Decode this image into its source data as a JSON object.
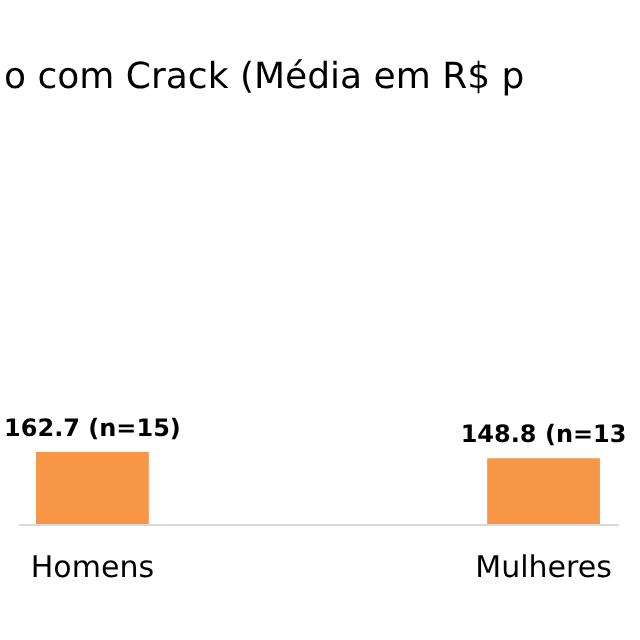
{
  "chart_data": {
    "type": "bar",
    "title": "o com Crack (Média em R$ p",
    "categories": [
      "Homens",
      "Mulheres"
    ],
    "values": [
      162.7,
      148.8
    ],
    "value_labels": [
      "162.7 (n=15)",
      "148.8 (n=13"
    ],
    "color": "#f79646"
  }
}
